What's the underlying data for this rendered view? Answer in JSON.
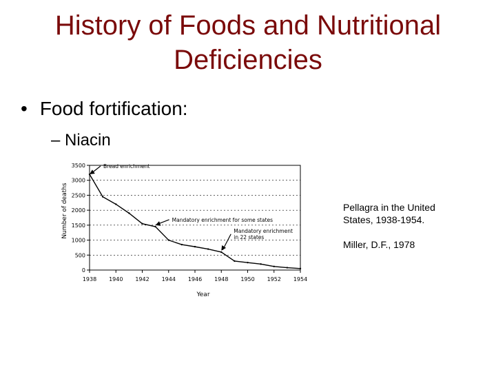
{
  "slide": {
    "title_line1": "History of Foods and Nutritional",
    "title_line2": "Deficiencies",
    "bullet1": "Food fortification:",
    "bullet2": "Niacin",
    "caption_line1": "Pellagra in the United",
    "caption_line2": "States, 1938-1954.",
    "citation": "Miller, D.F., 1978"
  },
  "chart_data": {
    "type": "line",
    "xlabel": "Year",
    "ylabel": "Number of deaths",
    "xlim": [
      1938,
      1954
    ],
    "ylim": [
      0,
      3500
    ],
    "xticks": [
      1938,
      1940,
      1942,
      1944,
      1946,
      1948,
      1950,
      1952,
      1954
    ],
    "yticks": [
      0,
      500,
      1000,
      1500,
      2000,
      2500,
      3000,
      3500
    ],
    "grid": "horizontal dotted",
    "series": [
      {
        "x": [
          1938,
          1939,
          1940,
          1941,
          1942,
          1943,
          1944,
          1945,
          1946,
          1947,
          1948,
          1949,
          1950,
          1951,
          1952,
          1953,
          1954
        ],
        "values": [
          3200,
          2450,
          2200,
          1900,
          1550,
          1450,
          1000,
          850,
          780,
          700,
          600,
          300,
          250,
          200,
          120,
          80,
          50
        ]
      }
    ],
    "annotations": [
      {
        "text": "Bread enrichment",
        "x": 1938,
        "y": 3200
      },
      {
        "text": "Mandatory enrichment for some states",
        "x": 1943,
        "y": 1500
      },
      {
        "text": "Mandatory enrichment in 22 states",
        "x": 1948,
        "y": 650
      }
    ],
    "color": "#000000"
  }
}
